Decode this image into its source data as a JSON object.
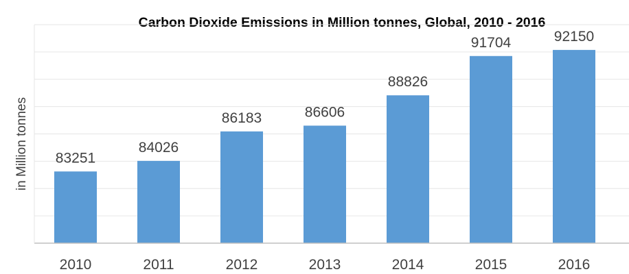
{
  "chart_data": {
    "type": "bar",
    "title": "Carbon Dioxide Emissions in Million tonnes, Global, 2010 - 2016",
    "xlabel": "",
    "ylabel": "in Million tonnes",
    "categories": [
      "2010",
      "2011",
      "2012",
      "2013",
      "2014",
      "2015",
      "2016"
    ],
    "values": [
      83251,
      84026,
      86183,
      86606,
      88826,
      91704,
      92150
    ],
    "ylim": [
      78000,
      94000
    ],
    "grid": true,
    "bar_color": "#5b9bd5",
    "data_labels": true
  }
}
